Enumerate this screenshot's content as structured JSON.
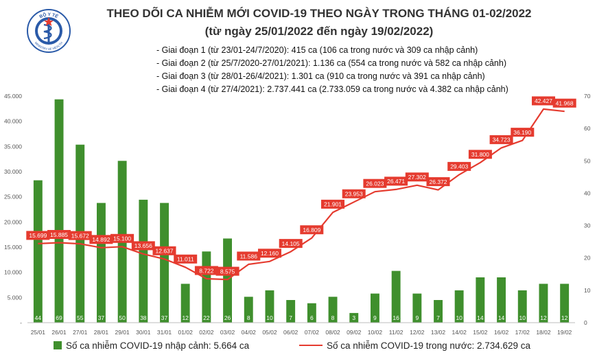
{
  "header": {
    "title": "THEO DÕI CA NHIỄM MỚI COVID-19 THEO NGÀY TRONG THÁNG 01-02/2022",
    "subtitle": "(từ ngày 25/01/2022 đến ngày 19/02/2022)",
    "stages": [
      "- Giai đoạn 1 (từ 23/01-24/7/2020): 415 ca (106 ca trong nước và 309 ca nhập cảnh)",
      "- Giai đoạn 2 (từ 25/7/2020-27/01/2021): 1.136 ca (554 ca trong nước và 582 ca nhập cảnh)",
      "- Giai đoạn 3 (từ 28/01-26/4/2021): 1.301 ca (910 ca trong nước và 391 ca nhập cảnh)",
      "- Giai đoạn 4 (từ 27/4/2021): 2.737.441 ca (2.733.059 ca trong nước và 4.382 ca nhập cảnh)"
    ]
  },
  "logo": {
    "top_text": "BỘ Y TẾ",
    "bottom_text": "MINISTRY OF HEALTH"
  },
  "chart_data": {
    "type": "bar+line",
    "categories": [
      "25/01",
      "26/01",
      "27/01",
      "28/01",
      "29/01",
      "30/01",
      "31/01",
      "01/02",
      "02/02",
      "03/02",
      "04/02",
      "05/02",
      "06/02",
      "07/02",
      "08/02",
      "09/02",
      "10/02",
      "11/02",
      "12/02",
      "13/02",
      "14/02",
      "15/02",
      "16/02",
      "17/02",
      "18/02",
      "19/02"
    ],
    "series": [
      {
        "name": "Số ca nhiễm COVID-19 nhập cảnh: 5.664 ca",
        "kind": "bar",
        "axis": "right",
        "color": "#3f8f2d",
        "values": [
          44,
          69,
          55,
          37,
          50,
          38,
          37,
          12,
          22,
          26,
          8,
          10,
          7,
          6,
          8,
          3,
          9,
          16,
          9,
          7,
          10,
          14,
          14,
          10,
          12,
          12
        ],
        "labels": [
          "44",
          "69",
          "55",
          "37",
          "50",
          "38",
          "37",
          "12",
          "22",
          "26",
          "8",
          "10",
          "7",
          "6",
          "8",
          "3",
          "9",
          "16",
          "9",
          "7",
          "10",
          "14",
          "14",
          "10",
          "12",
          "12"
        ]
      },
      {
        "name": "Số ca nhiễm COVID-19 trong nước: 2.734.629 ca",
        "kind": "line",
        "axis": "left",
        "color": "#e53b2f",
        "values": [
          15699,
          15885,
          15672,
          14892,
          15100,
          13656,
          12637,
          11011,
          8722,
          8575,
          11586,
          12160,
          14105,
          16809,
          21901,
          23953,
          26023,
          26471,
          27302,
          26372,
          29403,
          31800,
          34723,
          36190,
          42427,
          41968
        ],
        "labels": [
          "15.699",
          "15.885",
          "15.672",
          "14.892",
          "15.100",
          "13.656",
          "12.637",
          "11.011",
          "8.722",
          "8.575",
          "11.586",
          "12.160",
          "14.105",
          "16.809",
          "21.901",
          "23.953",
          "26.023",
          "26.471",
          "27.302",
          "26.372",
          "29.403",
          "31.800",
          "34.723",
          "36.190",
          "42.427",
          "41.968"
        ]
      }
    ],
    "y_left": {
      "min": 0,
      "max": 45000,
      "ticks": [
        0,
        5000,
        10000,
        15000,
        20000,
        25000,
        30000,
        35000,
        40000,
        45000
      ],
      "tick_labels": [
        "-",
        "5.000",
        "10.000",
        "15.000",
        "20.000",
        "25.000",
        "30.000",
        "35.000",
        "40.000",
        "45.000"
      ]
    },
    "y_right": {
      "min": 0,
      "max": 70,
      "ticks": [
        0,
        10,
        20,
        30,
        40,
        50,
        60,
        70
      ],
      "tick_labels": [
        "0",
        "10",
        "20",
        "30",
        "40",
        "50",
        "60",
        "70"
      ]
    },
    "legend_position": "bottom",
    "grid": false
  }
}
